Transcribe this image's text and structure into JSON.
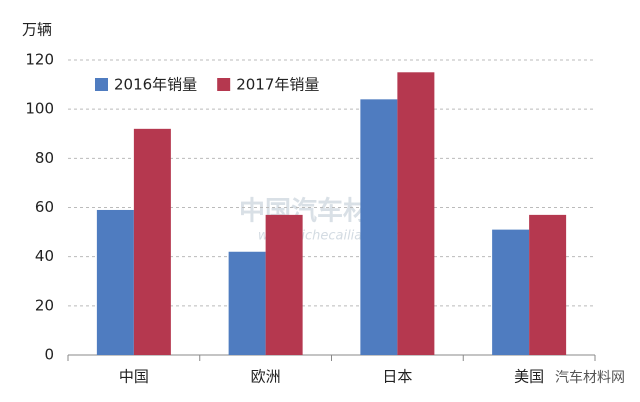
{
  "chart_data": {
    "type": "bar",
    "y_label": "万辆",
    "categories": [
      "中国",
      "欧洲",
      "日本",
      "美国"
    ],
    "series": [
      {
        "name": "2016年销量",
        "color": "#4f7cc0",
        "values": [
          59,
          42,
          104,
          51
        ]
      },
      {
        "name": "2017年销量",
        "color": "#b5384f",
        "values": [
          92,
          57,
          115,
          57
        ]
      }
    ],
    "ylim": [
      0,
      120
    ],
    "yticks": [
      0,
      20,
      40,
      60,
      80,
      100,
      120
    ],
    "grid": true,
    "legend": "top-left",
    "watermark": "中国汽车材料网",
    "watermark_url": "www.qichecailiao.com",
    "source_mark": "汽车材料网"
  }
}
